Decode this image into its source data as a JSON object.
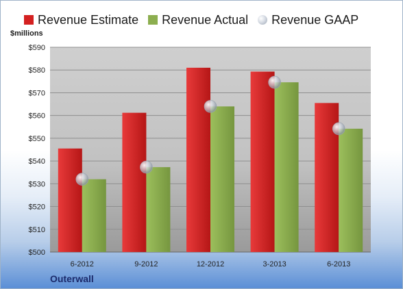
{
  "legend": {
    "estimate_label": "Revenue Estimate",
    "actual_label": "Revenue Actual",
    "gaap_label": "Revenue GAAP"
  },
  "units_label": "$millions",
  "company": "Outerwall",
  "colors": {
    "estimate": "#d42020",
    "actual": "#8cae4f",
    "gaap": "#c8cdd6",
    "plot_bg": "#c8c8c8"
  },
  "chart_data": {
    "type": "bar",
    "categories": [
      "6-2012",
      "9-2012",
      "12-2012",
      "3-2013",
      "6-2013"
    ],
    "series": [
      {
        "name": "Revenue Estimate",
        "values": [
          545.5,
          561.2,
          581.0,
          579.3,
          565.5
        ]
      },
      {
        "name": "Revenue Actual",
        "values": [
          532.0,
          537.3,
          564.0,
          574.6,
          554.2
        ]
      },
      {
        "name": "Revenue GAAP",
        "type": "scatter",
        "values": [
          532.0,
          537.3,
          564.0,
          574.6,
          554.2
        ]
      }
    ],
    "ylim": [
      500,
      590
    ],
    "yticks": [
      500,
      510,
      520,
      530,
      540,
      550,
      560,
      570,
      580,
      590
    ],
    "ytick_labels": [
      "$500",
      "$510",
      "$520",
      "$530",
      "$540",
      "$550",
      "$560",
      "$570",
      "$580",
      "$590"
    ],
    "ylabel": "$millions",
    "grid": true,
    "legend_position": "top"
  }
}
